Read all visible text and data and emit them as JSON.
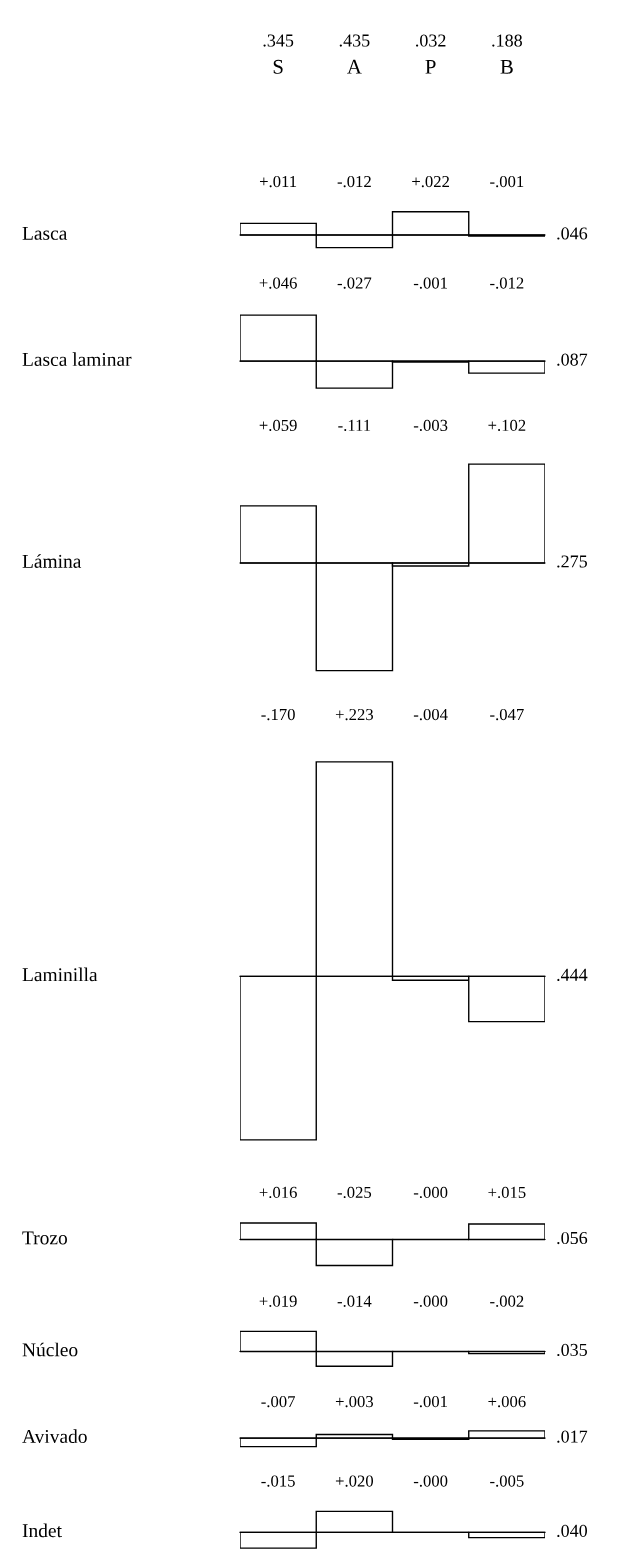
{
  "chart_data": [
    {
      "type": "bar",
      "ylabel": "Lasca",
      "categories": [
        "S",
        "A",
        "P",
        "B"
      ],
      "values": [
        0.011,
        -0.012,
        0.022,
        -0.001
      ],
      "value_labels": [
        "+.011",
        "-.012",
        "+.022",
        "-.001"
      ],
      "tick_labels": "x",
      "annotations": [
        ".345",
        ".435",
        ".032",
        ".188",
        ".046"
      ]
    },
    {
      "type": "bar",
      "ylabel": "Lasca laminar",
      "categories": [
        null,
        null,
        null,
        null
      ],
      "values": [
        0.046,
        -0.027,
        -0.001,
        -0.012
      ],
      "value_labels": [
        "+.046",
        "-.027",
        "-.001",
        "-.012"
      ],
      "tick_labels": false,
      "annotations": [
        ".087"
      ]
    },
    {
      "type": "bar",
      "ylabel": "Lámina",
      "categories": [
        null,
        null,
        null,
        null
      ],
      "values": [
        0.059,
        -0.111,
        -0.003,
        0.102
      ],
      "value_labels": [
        "+.059",
        "-.111",
        "-.003",
        "+.102"
      ],
      "tick_labels": false,
      "annotations": [
        ".275"
      ]
    },
    {
      "type": "bar",
      "ylabel": "Laminilla",
      "categories": [
        null,
        null,
        null,
        null
      ],
      "values": [
        -0.17,
        0.223,
        -0.004,
        -0.047
      ],
      "value_labels": [
        "-.170",
        "+.223",
        "-.004",
        "-.047"
      ],
      "tick_labels": false,
      "annotations": [
        ".444"
      ]
    },
    {
      "type": "bar",
      "ylabel": "Trozo",
      "categories": [
        null,
        null,
        null,
        null
      ],
      "values": [
        0.016,
        -0.025,
        0.0,
        0.015
      ],
      "value_labels": [
        "+.016",
        "-.025",
        "-.000",
        "+.015"
      ],
      "tick_labels": false,
      "annotations": [
        ".056"
      ]
    },
    {
      "type": "bar",
      "ylabel": "Núcleo",
      "categories": [
        null,
        null,
        null,
        null
      ],
      "values": [
        0.019,
        -0.014,
        0.0,
        -0.002
      ],
      "value_labels": [
        "+.019",
        "-.014",
        "-.000",
        "-.002"
      ],
      "tick_labels": false,
      "annotations": [
        ".035"
      ]
    },
    {
      "type": "bar",
      "ylabel": "Avivado",
      "categories": [
        null,
        null,
        null,
        null
      ],
      "values": [
        -0.007,
        0.003,
        -0.001,
        0.006
      ],
      "value_labels": [
        "-.007",
        "+.003",
        "-.001",
        "+.006"
      ],
      "tick_labels": false,
      "annotations": [
        ".017"
      ]
    },
    {
      "type": "bar",
      "ylabel": "Indet",
      "categories": [
        null,
        null,
        null,
        null
      ],
      "values": [
        -0.015,
        0.02,
        0.0,
        -0.005
      ],
      "value_labels": [
        "-.015",
        "+.020",
        "-.000",
        "-.005"
      ],
      "tick_labels": false,
      "annotations": [
        ".040"
      ]
    }
  ]
}
